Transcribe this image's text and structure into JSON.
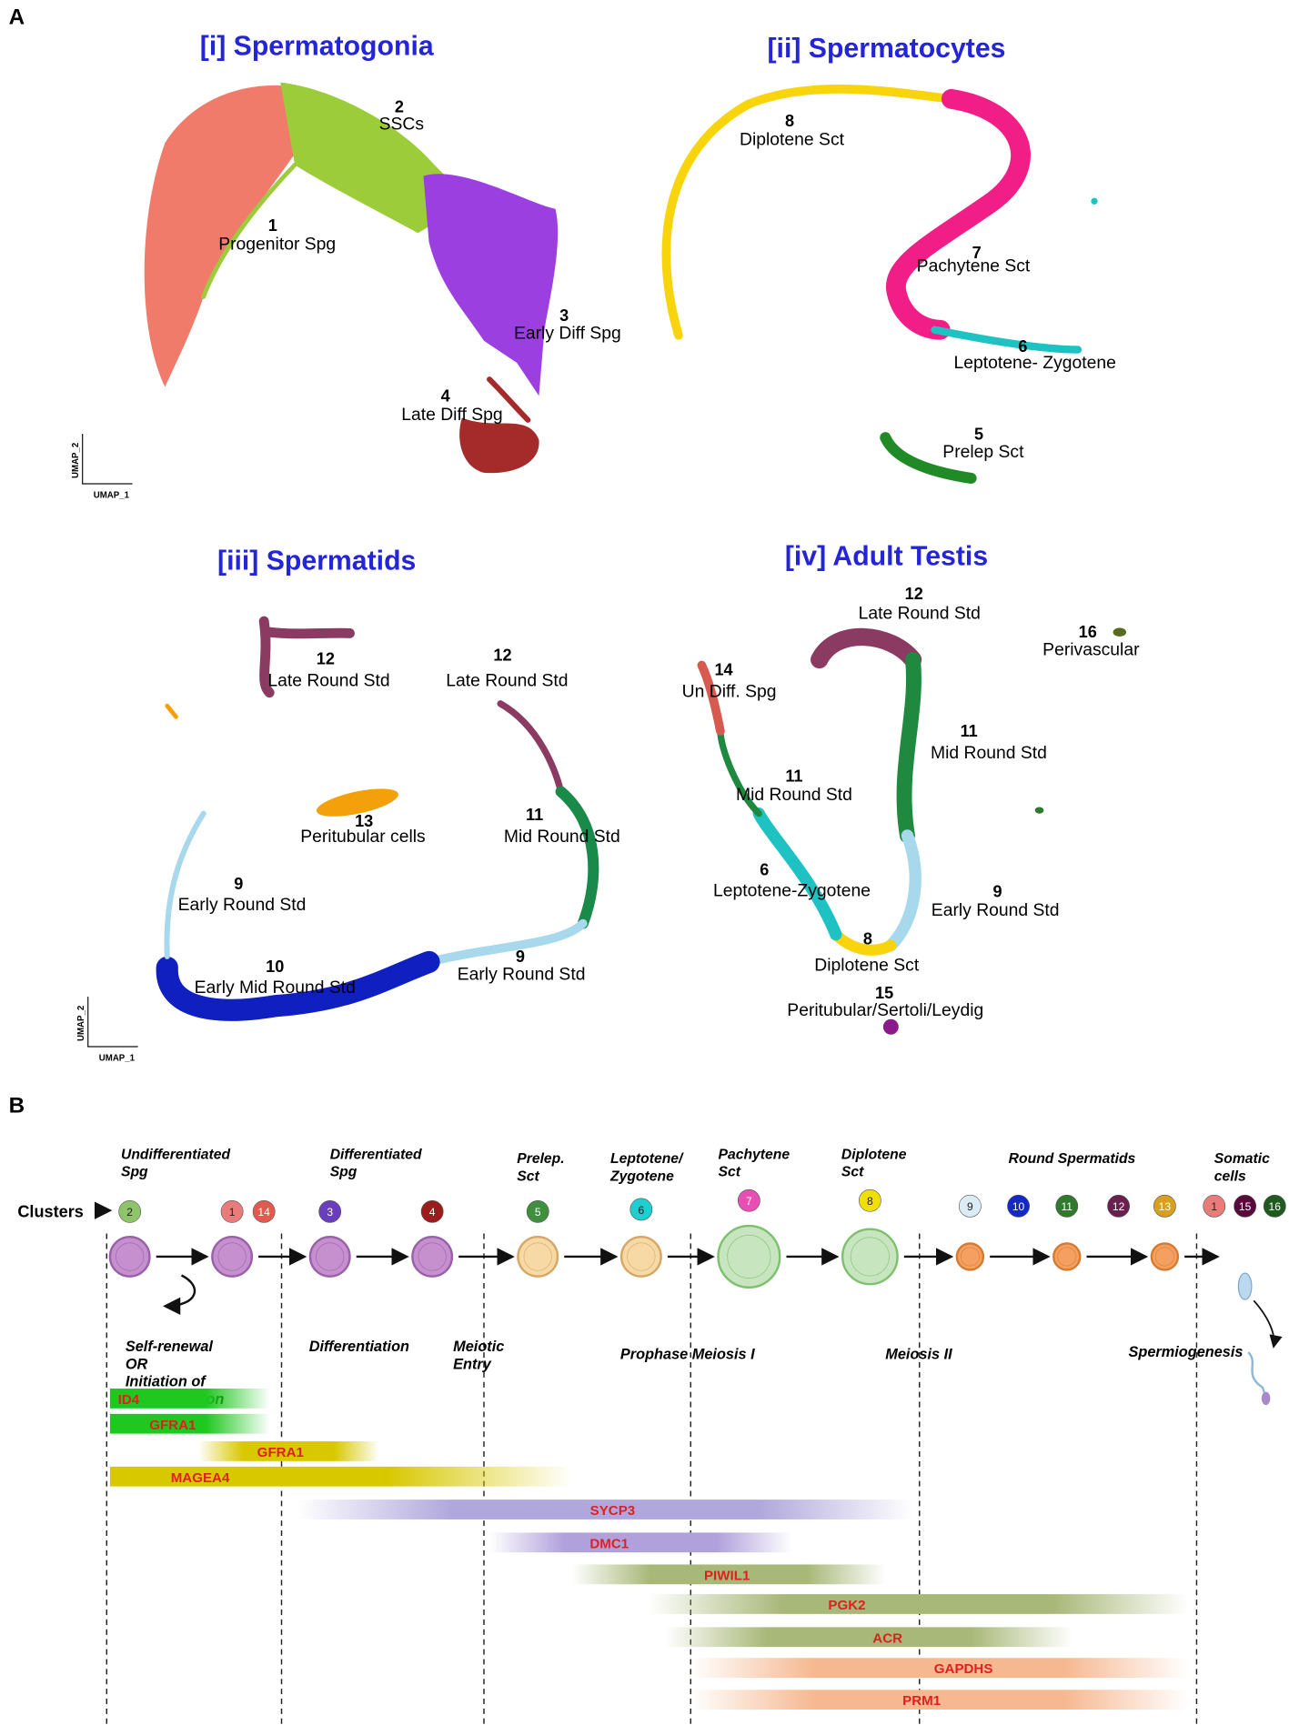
{
  "panel_a": {
    "label": "A",
    "plots": [
      {
        "title": "[i] Spermatogonia",
        "clusters": [
          {
            "number": "1",
            "name": "Progenitor Spg"
          },
          {
            "number": "2",
            "name": "SSCs"
          },
          {
            "number": "3",
            "name": "Early Diff Spg"
          },
          {
            "number": "4",
            "name": "Late Diff Spg"
          }
        ],
        "x_axis": "UMAP_1",
        "y_axis": "UMAP_2"
      },
      {
        "title": "[ii] Spermatocytes",
        "clusters": [
          {
            "number": "8",
            "name": "Diplotene Sct"
          },
          {
            "number": "7",
            "name": "Pachytene Sct"
          },
          {
            "number": "6",
            "name": "Leptotene- Zygotene"
          },
          {
            "number": "5",
            "name": "Prelep Sct"
          }
        ]
      },
      {
        "title": "[iii] Spermatids",
        "clusters": [
          {
            "number": "12",
            "name": "Late Round Std"
          },
          {
            "number": "12",
            "name": "Late Round Std"
          },
          {
            "number": "13",
            "name": "Peritubular cells"
          },
          {
            "number": "11",
            "name": "Mid Round Std"
          },
          {
            "number": "9",
            "name": "Early Round Std"
          },
          {
            "number": "10",
            "name": "Early Mid Round Std"
          },
          {
            "number": "9",
            "name": "Early Round Std"
          }
        ],
        "x_axis": "UMAP_1",
        "y_axis": "UMAP_2"
      },
      {
        "title": "[iv] Adult Testis",
        "clusters": [
          {
            "number": "12",
            "name": "Late Round Std"
          },
          {
            "number": "16",
            "name": "Perivascular"
          },
          {
            "number": "14",
            "name": "Un Diff. Spg"
          },
          {
            "number": "11",
            "name": "Mid Round Std"
          },
          {
            "number": "11",
            "name": "Mid Round Std"
          },
          {
            "number": "6",
            "name": "Leptotene-Zygotene"
          },
          {
            "number": "9",
            "name": "Early Round Std"
          },
          {
            "number": "8",
            "name": "Diplotene Sct"
          },
          {
            "number": "15",
            "name": "Peritubular/Sertoli/Leydig"
          }
        ]
      }
    ]
  },
  "panel_b": {
    "label": "B",
    "clusters_label": "Clusters",
    "stages": [
      [
        "Undifferentiated",
        "Spg"
      ],
      [
        "Differentiated",
        "Spg"
      ],
      [
        "Prelep.",
        "Sct"
      ],
      [
        "Leptotene/",
        "Zygotene"
      ],
      [
        "Pachytene",
        "Sct"
      ],
      [
        "Diplotene",
        "Sct"
      ],
      [
        "Round Spermatids"
      ],
      [
        "Somatic",
        "cells"
      ]
    ],
    "cluster_badges": [
      "2",
      "1",
      "14",
      "3",
      "4",
      "5",
      "6",
      "7",
      "8",
      "9",
      "10",
      "11",
      "12",
      "13",
      "1",
      "15",
      "16"
    ],
    "processes": [
      [
        "Self-renewal",
        "OR",
        "Initiation of",
        "differentiation"
      ],
      [
        "Differentiation"
      ],
      [
        "Meiotic",
        "Entry"
      ],
      [
        "Prophase Meiosis I"
      ],
      [
        "Meiosis II"
      ],
      [
        "Spermiogenesis"
      ]
    ],
    "markers": [
      "ID4",
      "GFRA1",
      "GFRA1",
      "MAGEA4",
      "SYCP3",
      "DMC1",
      "PIWIL1",
      "PGK2",
      "ACR",
      "GAPDHS",
      "PRM1"
    ]
  }
}
